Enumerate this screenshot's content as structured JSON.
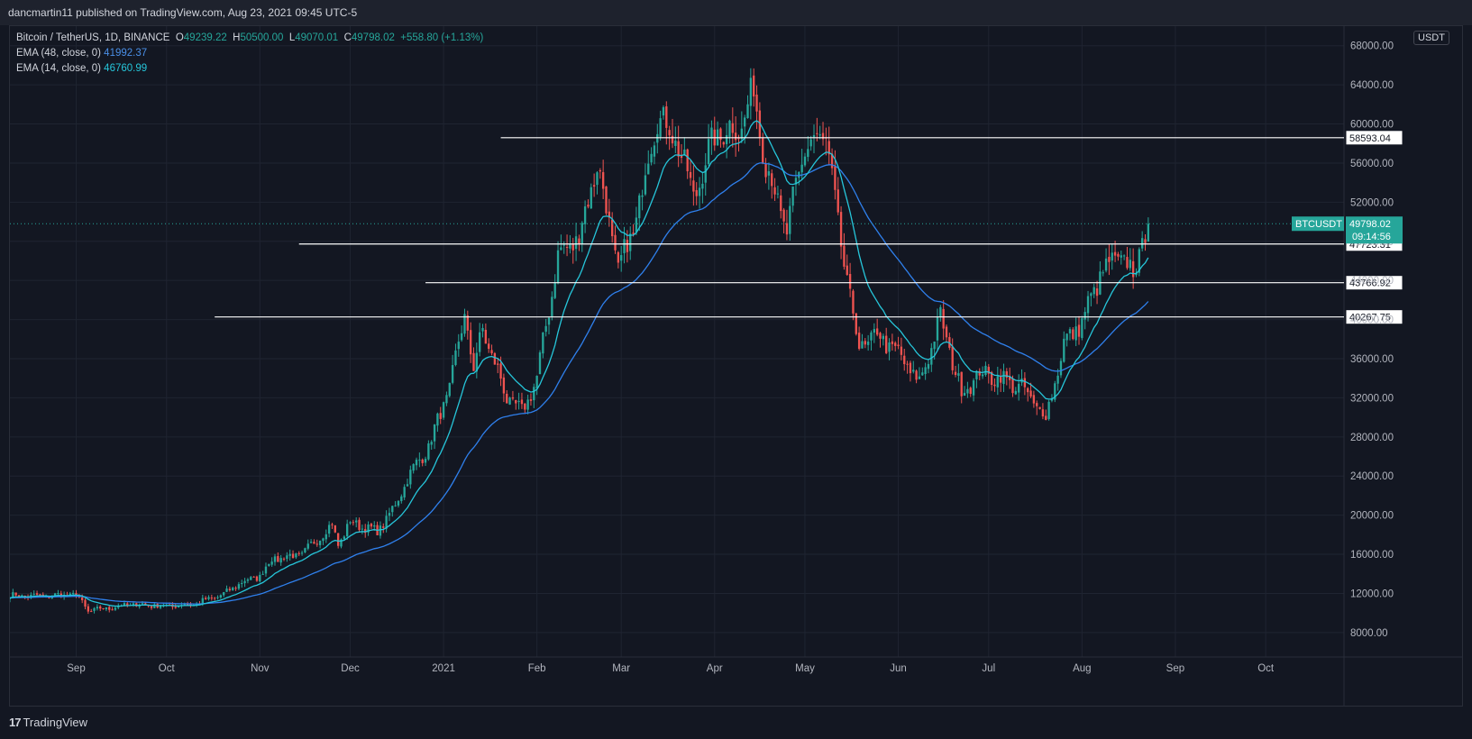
{
  "header": {
    "publish_line": "dancmartin11 published on TradingView.com, Aug 23, 2021 09:45 UTC-5"
  },
  "legend": {
    "symbol": "Bitcoin / TetherUS, 1D, BINANCE",
    "ohlc": {
      "o_key": "O",
      "o": "49239.22",
      "h_key": "H",
      "h": "50500.00",
      "l_key": "L",
      "l": "49070.01",
      "c_key": "C",
      "c": "49798.02",
      "change": "+558.80 (+1.13%)"
    },
    "ema48_label": "EMA (48, close, 0)",
    "ema48_value": "41992.37",
    "ema14_label": "EMA (14, close, 0)",
    "ema14_value": "46760.99"
  },
  "currency_button": "USDT",
  "footer": {
    "brand": "TradingView",
    "logo_glyph": "17"
  },
  "colors": {
    "up": "#26a69a",
    "down": "#ef5350",
    "ema48": "#2f80ed",
    "ema14": "#26c6da",
    "grid": "#1f2431",
    "hline": "#ffffff",
    "price_tag": "#26a69a"
  },
  "chart_data": {
    "type": "candlestick",
    "x_axis": {
      "ticks": [
        {
          "label": "Sep",
          "date": "2020-09-01"
        },
        {
          "label": "Oct",
          "date": "2020-10-01"
        },
        {
          "label": "Nov",
          "date": "2020-11-01"
        },
        {
          "label": "Dec",
          "date": "2020-12-01"
        },
        {
          "label": "2021",
          "date": "2021-01-01"
        },
        {
          "label": "Feb",
          "date": "2021-02-01"
        },
        {
          "label": "Mar",
          "date": "2021-03-01"
        },
        {
          "label": "Apr",
          "date": "2021-04-01"
        },
        {
          "label": "May",
          "date": "2021-05-01"
        },
        {
          "label": "Jun",
          "date": "2021-06-01"
        },
        {
          "label": "Jul",
          "date": "2021-07-01"
        },
        {
          "label": "Aug",
          "date": "2021-08-01"
        },
        {
          "label": "Sep",
          "date": "2021-09-01"
        },
        {
          "label": "Oct",
          "date": "2021-10-01"
        }
      ],
      "range": [
        "2020-08-10",
        "2021-10-27"
      ]
    },
    "y_axis": {
      "ticks": [
        "8000.00",
        "12000.00",
        "16000.00",
        "20000.00",
        "24000.00",
        "28000.00",
        "32000.00",
        "36000.00",
        "40000.00",
        "44000.00",
        "48000.00",
        "52000.00",
        "56000.00",
        "60000.00",
        "64000.00",
        "68000.00"
      ],
      "range": [
        5500,
        70000
      ]
    },
    "candles_start": "2020-08-10",
    "candles_end": "2021-08-23",
    "anchors": [
      [
        "2020-08-10",
        11800
      ],
      [
        "2020-08-20",
        11700
      ],
      [
        "2020-09-01",
        11900
      ],
      [
        "2020-09-05",
        10200
      ],
      [
        "2020-09-20",
        10900
      ],
      [
        "2020-10-01",
        10700
      ],
      [
        "2020-10-10",
        10900
      ],
      [
        "2020-10-20",
        11900
      ],
      [
        "2020-10-25",
        13000
      ],
      [
        "2020-11-01",
        13800
      ],
      [
        "2020-11-05",
        15500
      ],
      [
        "2020-11-15",
        16000
      ],
      [
        "2020-11-25",
        19000
      ],
      [
        "2020-11-27",
        17000
      ],
      [
        "2020-12-01",
        19300
      ],
      [
        "2020-12-10",
        18300
      ],
      [
        "2020-12-16",
        21000
      ],
      [
        "2020-12-20",
        23800
      ],
      [
        "2020-12-27",
        27000
      ],
      [
        "2021-01-03",
        33000
      ],
      [
        "2021-01-08",
        40500
      ],
      [
        "2021-01-11",
        35000
      ],
      [
        "2021-01-14",
        39000
      ],
      [
        "2021-01-22",
        32000
      ],
      [
        "2021-01-27",
        30500
      ],
      [
        "2021-02-01",
        34000
      ],
      [
        "2021-02-08",
        46500
      ],
      [
        "2021-02-15",
        48500
      ],
      [
        "2021-02-21",
        56000
      ],
      [
        "2021-02-28",
        45200
      ],
      [
        "2021-03-05",
        49000
      ],
      [
        "2021-03-13",
        61000
      ],
      [
        "2021-03-20",
        58000
      ],
      [
        "2021-03-25",
        52500
      ],
      [
        "2021-04-01",
        58800
      ],
      [
        "2021-04-10",
        59800
      ],
      [
        "2021-04-14",
        63500
      ],
      [
        "2021-04-18",
        56000
      ],
      [
        "2021-04-25",
        49000
      ],
      [
        "2021-05-01",
        57700
      ],
      [
        "2021-05-08",
        58800
      ],
      [
        "2021-05-12",
        49500
      ],
      [
        "2021-05-19",
        37000
      ],
      [
        "2021-05-25",
        38500
      ],
      [
        "2021-06-01",
        36500
      ],
      [
        "2021-06-08",
        33500
      ],
      [
        "2021-06-15",
        40200
      ],
      [
        "2021-06-22",
        32500
      ],
      [
        "2021-06-28",
        34500
      ],
      [
        "2021-07-05",
        34000
      ],
      [
        "2021-07-12",
        33000
      ],
      [
        "2021-07-20",
        30000
      ],
      [
        "2021-07-26",
        37500
      ],
      [
        "2021-08-01",
        39800
      ],
      [
        "2021-08-07",
        44500
      ],
      [
        "2021-08-13",
        46500
      ],
      [
        "2021-08-18",
        44800
      ],
      [
        "2021-08-23",
        49798
      ]
    ],
    "series": [
      {
        "name": "EMA (48, close, 0)",
        "last": 41992.37
      },
      {
        "name": "EMA (14, close, 0)",
        "last": 46760.99
      }
    ],
    "horizontal_lines": [
      {
        "value": 58593.04,
        "label": "58593.04",
        "from": "2021-01-20"
      },
      {
        "value": 47723.31,
        "label": "47723.31",
        "from": "2020-11-14"
      },
      {
        "value": 43766.92,
        "label": "43766.92",
        "from": "2020-12-26"
      },
      {
        "value": 40267.75,
        "label": "40267.75",
        "from": "2020-10-17"
      }
    ],
    "last_price": {
      "symbol": "BTCUSDT",
      "value": "49798.02",
      "countdown": "09:14:56"
    }
  }
}
